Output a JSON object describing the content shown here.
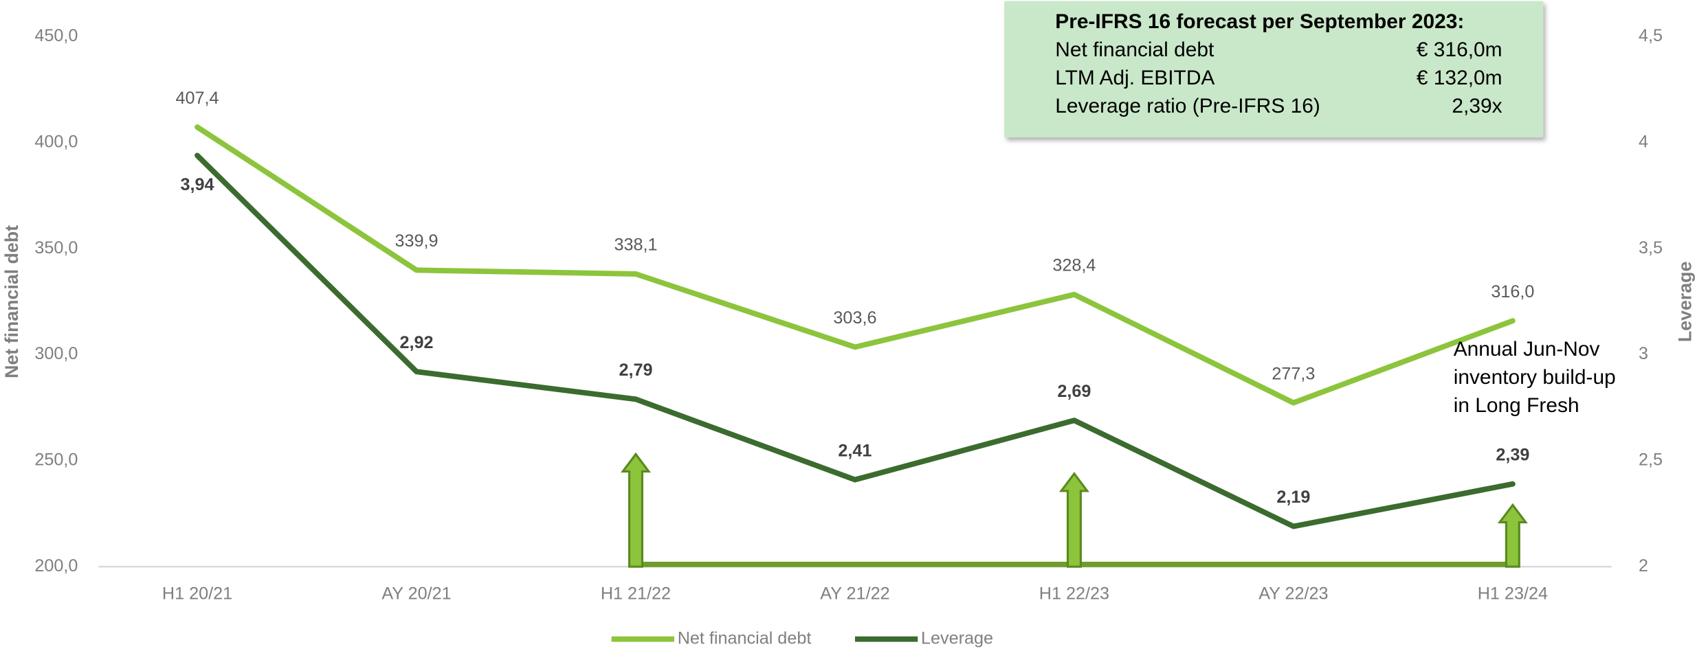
{
  "chart_data": {
    "type": "line",
    "categories": [
      "H1 20/21",
      "AY 20/21",
      "H1 21/22",
      "AY 21/22",
      "H1 22/23",
      "AY 22/23",
      "H1 23/24"
    ],
    "series": [
      {
        "name": "Net financial debt",
        "color": "#8cc43c",
        "values": [
          407.4,
          339.9,
          338.1,
          303.6,
          328.4,
          277.3,
          316.0
        ],
        "value_labels": [
          "407,4",
          "339,9",
          "338,1",
          "303,6",
          "328,4",
          "277,3",
          "316,0"
        ]
      },
      {
        "name": "Leverage",
        "color": "#3b6b2e",
        "axis": "y2",
        "values": [
          3.94,
          2.92,
          2.79,
          2.41,
          2.69,
          2.19,
          2.39
        ],
        "value_labels": [
          "3,94",
          "2,92",
          "2,79",
          "2,41",
          "2,69",
          "2,19",
          "2,39"
        ]
      }
    ],
    "ylabel": "Net financial debt",
    "y2label": "Leverage",
    "ylim": [
      200,
      450
    ],
    "yticks": [
      {
        "value": 200,
        "label": "200,0"
      },
      {
        "value": 250,
        "label": "250,0"
      },
      {
        "value": 300,
        "label": "300,0"
      },
      {
        "value": 350,
        "label": "350,0"
      },
      {
        "value": 400,
        "label": "400,0"
      },
      {
        "value": 450,
        "label": "450,0"
      }
    ],
    "y2lim": [
      2,
      4.5
    ],
    "y2ticks": [
      2,
      {
        "value": 2.5,
        "label": "2,5"
      },
      3,
      {
        "value": 3.5,
        "label": "3,5"
      },
      4,
      {
        "value": 4.5,
        "label": "4,5"
      }
    ],
    "legend": "bottom",
    "info_box": {
      "title": "Pre-IFRS 16 forecast per September 2023:",
      "rows": [
        [
          "Net financial debt",
          "€ 316,0m"
        ],
        [
          "LTM Adj. EBITDA",
          "€ 132,0m"
        ],
        [
          "Leverage ratio (Pre-IFRS 16)",
          "2,39x"
        ]
      ]
    },
    "annotation_lines": [
      "Annual Jun-Nov",
      "inventory build-up",
      "in Long Fresh"
    ]
  }
}
